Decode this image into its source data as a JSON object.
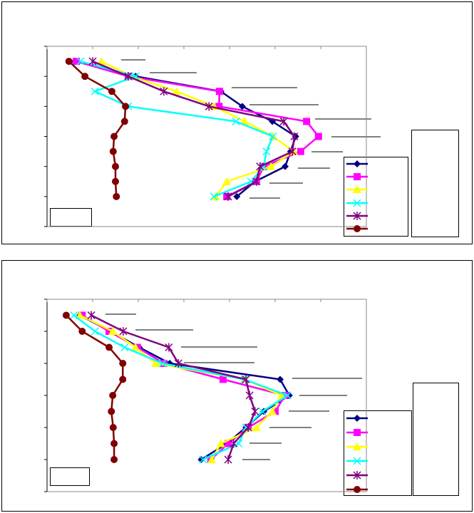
{
  "chart_data": [
    {
      "type": "line",
      "xlim": [
        0,
        7
      ],
      "xticks": [
        0,
        1,
        2,
        3,
        4,
        5,
        6,
        7
      ],
      "ylim": [
        0,
        6
      ],
      "yticks": [
        0,
        1,
        2,
        3,
        4,
        5,
        6
      ],
      "y_reversed": true,
      "y": [
        0.5,
        1,
        1.5,
        2,
        2.5,
        3,
        3.5,
        4,
        4.5,
        5
      ],
      "series": [
        {
          "color": "#000080",
          "marker": "diamond",
          "values": [
            0.61,
            1.94,
            3.81,
            4.28,
            4.94,
            5.45,
            5.34,
            5.22,
            4.56,
            4.16
          ]
        },
        {
          "color": "#ff00ff",
          "marker": "square",
          "values": [
            0.64,
            1.78,
            3.78,
            3.77,
            5.69,
            5.95,
            5.56,
            4.75,
            4.59,
            3.94
          ]
        },
        {
          "color": "#ffff00",
          "marker": "triangle",
          "values": [
            1.19,
            1.86,
            2.84,
            3.66,
            4.33,
            4.95,
            5.41,
            4.91,
            3.94,
            3.7
          ]
        },
        {
          "color": "#00ffff",
          "marker": "x",
          "values": [
            0.73,
            1.94,
            1.05,
            1.78,
            4.14,
            4.95,
            4.81,
            4.75,
            4.47,
            3.66
          ]
        },
        {
          "color": "#800080",
          "marker": "star",
          "values": [
            1.0,
            1.78,
            2.56,
            3.55,
            5.19,
            5.42,
            5.38,
            4.67,
            4.59,
            3.97
          ]
        },
        {
          "color": "#800000",
          "marker": "circle",
          "values": [
            0.48,
            0.83,
            1.42,
            1.72,
            1.7,
            1.47,
            1.45,
            1.5,
            1.5,
            1.52
          ]
        }
      ]
    },
    {
      "type": "line",
      "xlim": [
        0,
        7
      ],
      "xticks": [
        0,
        1,
        2,
        3,
        4,
        5,
        6,
        7
      ],
      "ylim": [
        0,
        6
      ],
      "yticks": [
        0,
        1,
        2,
        3,
        4,
        5,
        6
      ],
      "y_reversed": true,
      "y": [
        0.5,
        1,
        1.5,
        2,
        2.5,
        3,
        3.5,
        4,
        4.5,
        5
      ],
      "series": [
        {
          "color": "#000080",
          "marker": "diamond",
          "values": [
            0.72,
            1.39,
            2.02,
            2.69,
            5.11,
            5.31,
            4.75,
            4.36,
            3.94,
            3.38
          ]
        },
        {
          "color": "#ff00ff",
          "marker": "square",
          "values": [
            0.77,
            1.36,
            1.98,
            2.56,
            3.86,
            5.22,
            5.0,
            4.41,
            3.97,
            3.59
          ]
        },
        {
          "color": "#ffff00",
          "marker": "triangle",
          "values": [
            0.72,
            1.44,
            1.94,
            2.38,
            4.33,
            5.14,
            4.94,
            4.59,
            3.81,
            3.61
          ]
        },
        {
          "color": "#00ffff",
          "marker": "x",
          "values": [
            0.59,
            1.05,
            1.7,
            2.53,
            4.33,
            5.27,
            4.72,
            4.36,
            4.2,
            3.42
          ]
        },
        {
          "color": "#800080",
          "marker": "star",
          "values": [
            0.97,
            1.67,
            2.67,
            2.88,
            4.36,
            4.44,
            4.56,
            4.41,
            4.09,
            3.97
          ]
        },
        {
          "color": "#800000",
          "marker": "circle",
          "values": [
            0.42,
            0.77,
            1.36,
            1.66,
            1.66,
            1.44,
            1.41,
            1.45,
            1.47,
            1.47
          ]
        }
      ]
    }
  ]
}
